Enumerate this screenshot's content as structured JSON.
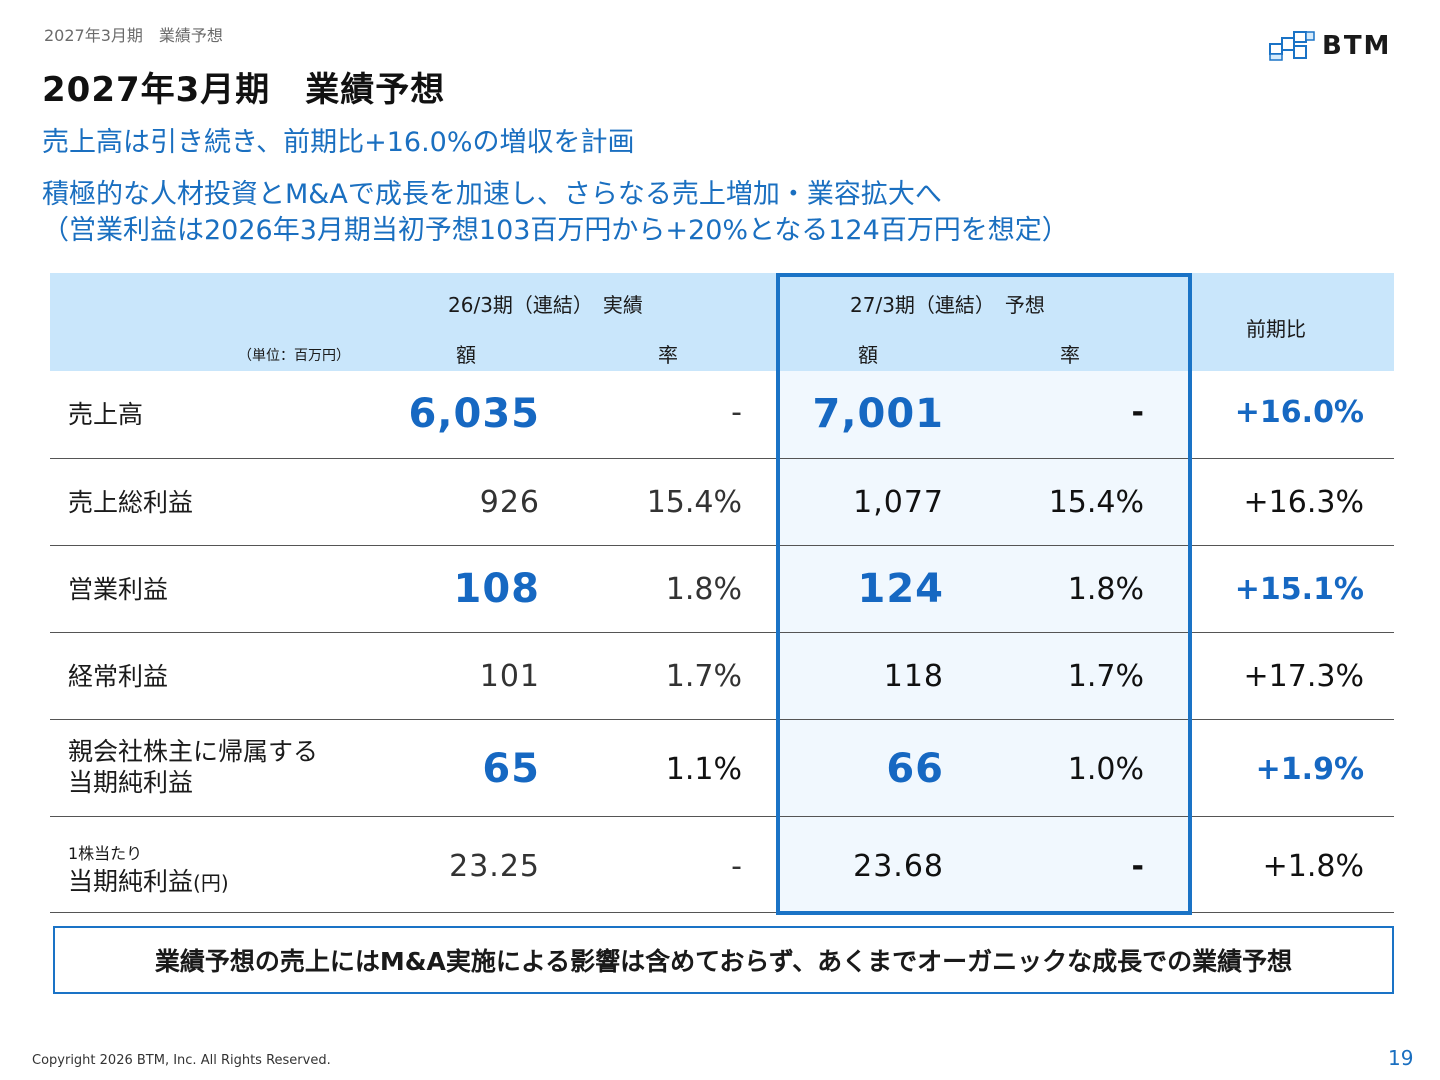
{
  "header": {
    "breadcrumb": "2027年3月期　業績予想",
    "title": "2027年3月期　業績予想",
    "logo_text": "BTM"
  },
  "subtitle": {
    "line1": "売上高は引き続き、前期比+16.0%の増収を計画",
    "line2": "積極的な人材投資とM&Aで成長を加速し、さらなる売上増加・業容拡大へ",
    "line3": "（営業利益は2026年3月期当初予想103百万円から+20%となる124百万円を想定）"
  },
  "table": {
    "unit": "（単位：百万円）",
    "col_group1": "26/3期（連結）　実績",
    "col_group2": "27/3期（連結）　予想",
    "col_amount": "額",
    "col_rate": "率",
    "col_amount2": "額",
    "col_rate2": "率",
    "col_yoy": "前期比",
    "rows": [
      {
        "label": "売上高",
        "prev_amount": "6,035",
        "prev_rate": "-",
        "fcst_amount": "7,001",
        "fcst_rate": "-",
        "yoy": "+16.0%"
      },
      {
        "label": "売上総利益",
        "prev_amount": "926",
        "prev_rate": "15.4%",
        "fcst_amount": "1,077",
        "fcst_rate": "15.4%",
        "yoy": "+16.3%"
      },
      {
        "label": "営業利益",
        "prev_amount": "108",
        "prev_rate": "1.8%",
        "fcst_amount": "124",
        "fcst_rate": "1.8%",
        "yoy": "+15.1%"
      },
      {
        "label": "経常利益",
        "prev_amount": "101",
        "prev_rate": "1.7%",
        "fcst_amount": "118",
        "fcst_rate": "1.7%",
        "yoy": "+17.3%"
      },
      {
        "label_line1": "親会社株主に帰属する",
        "label_line2": "当期純利益",
        "prev_amount": "65",
        "prev_rate": "1.1%",
        "fcst_amount": "66",
        "fcst_rate": "1.0%",
        "yoy": "+1.9%"
      },
      {
        "label_line1": "1株当たり",
        "label_line2": "当期純利益",
        "label_suffix": "(円)",
        "prev_amount": "23.25",
        "prev_rate": "-",
        "fcst_amount": "23.68",
        "fcst_rate": "-",
        "yoy": "+1.8%"
      }
    ]
  },
  "note": "業績予想の売上にはM&A実施による影響は含めておらず、あくまでオーガニックな成長での業績予想",
  "footer": {
    "copyright": "Copyright 2026 BTM, Inc. All Rights Reserved.",
    "page": "19"
  },
  "colors": {
    "accent_blue": "#1a6fc0",
    "header_bg": "#c9e6fb",
    "highlight_frame": "#1a73c6"
  }
}
